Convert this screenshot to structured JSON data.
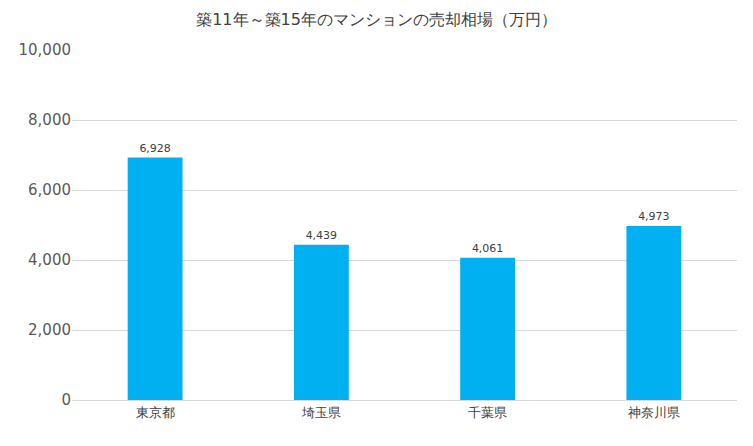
{
  "chart_data": {
    "type": "bar",
    "title": "築11年～築15年のマンションの売却相場（万円）",
    "categories": [
      "東京都",
      "埼玉県",
      "千葉県",
      "神奈川県"
    ],
    "values": [
      6928,
      4439,
      4061,
      4973
    ],
    "value_labels": [
      "6,928",
      "4,439",
      "4,061",
      "4,973"
    ],
    "color": "#00b0f0",
    "ylim": [
      0,
      10000
    ],
    "yticks": [
      0,
      {
        "value": 2000,
        "label": "2,000"
      },
      {
        "value": 4000,
        "label": "4,000"
      },
      {
        "value": 6000,
        "label": "6,000"
      },
      {
        "value": 8000,
        "label": "8,000"
      },
      {
        "value": 10000,
        "label": "10,000"
      }
    ],
    "grid": true,
    "data_labels": true
  }
}
